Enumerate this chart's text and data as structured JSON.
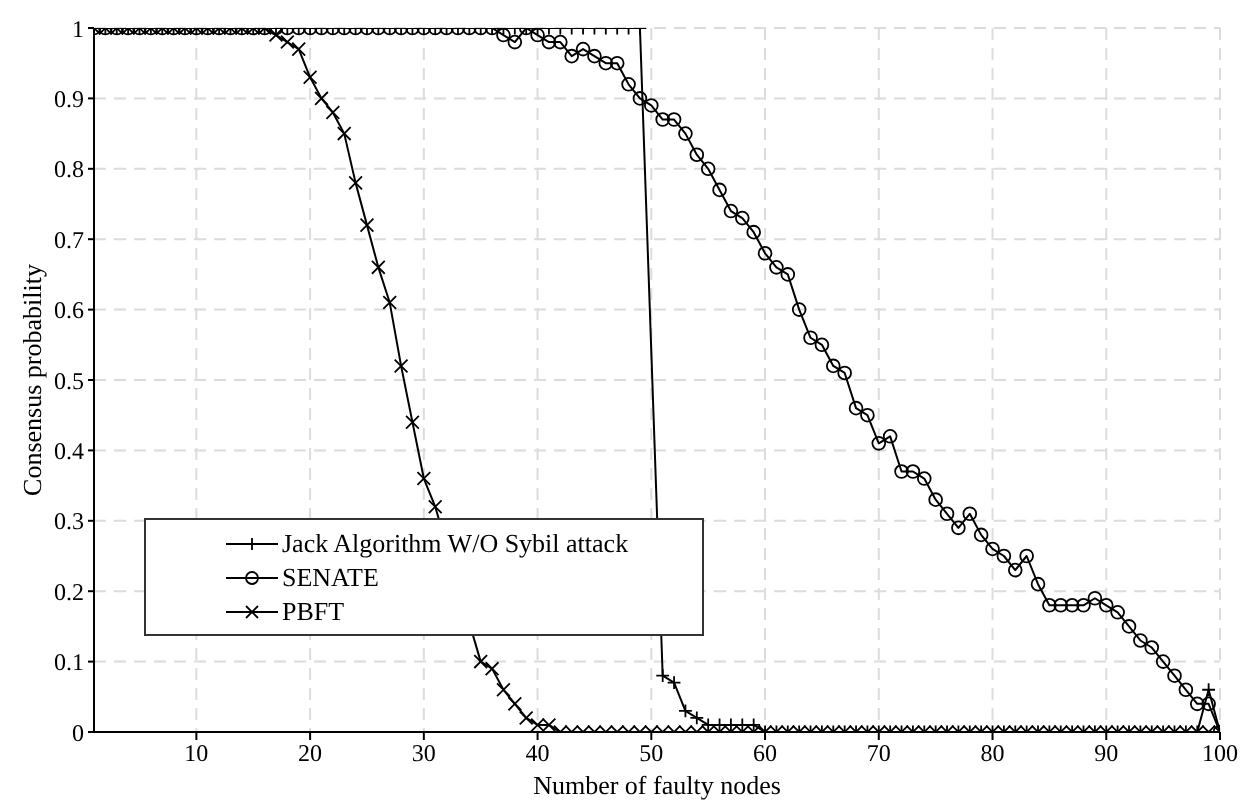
{
  "chart_data": {
    "type": "line",
    "xlabel": "Number of faulty nodes",
    "ylabel": "Consensus probability",
    "xlim": [
      1,
      100
    ],
    "xticks": [
      10,
      20,
      30,
      40,
      50,
      60,
      70,
      80,
      90,
      100
    ],
    "ylim": [
      0,
      1
    ],
    "yticks": [
      0,
      0.1,
      0.2,
      0.3,
      0.4,
      0.5,
      0.6,
      0.7,
      0.8,
      0.9,
      1
    ],
    "grid": true,
    "legend": "bottom left",
    "line_style": "solid",
    "x": [
      1,
      2,
      3,
      4,
      5,
      6,
      7,
      8,
      9,
      10,
      11,
      12,
      13,
      14,
      15,
      16,
      17,
      18,
      19,
      20,
      21,
      22,
      23,
      24,
      25,
      26,
      27,
      28,
      29,
      30,
      31,
      32,
      33,
      34,
      35,
      36,
      37,
      38,
      39,
      40,
      41,
      42,
      43,
      44,
      45,
      46,
      47,
      48,
      49,
      50,
      51,
      52,
      53,
      54,
      55,
      56,
      57,
      58,
      59,
      60,
      61,
      62,
      63,
      64,
      65,
      66,
      67,
      68,
      69,
      70,
      71,
      72,
      73,
      74,
      75,
      76,
      77,
      78,
      79,
      80,
      81,
      82,
      83,
      84,
      85,
      86,
      87,
      88,
      89,
      90,
      91,
      92,
      93,
      94,
      95,
      96,
      97,
      98,
      99,
      100
    ],
    "series": [
      {
        "name": "Jack Algorithm W/O Sybil attack",
        "color": "#000000",
        "marker": "plus",
        "values": [
          1,
          1,
          1,
          1,
          1,
          1,
          1,
          1,
          1,
          1,
          1,
          1,
          1,
          1,
          1,
          1,
          1,
          1,
          1,
          1,
          1,
          1,
          1,
          1,
          1,
          1,
          1,
          1,
          1,
          1,
          1,
          1,
          1,
          1,
          1,
          1,
          1,
          1,
          1,
          1,
          1,
          1,
          1,
          1,
          1,
          1,
          1,
          1,
          1,
          null,
          0.08,
          0.07,
          0.03,
          0.02,
          0.01,
          0.01,
          0.01,
          0.01,
          0.01,
          0,
          0,
          0,
          0,
          0,
          0,
          0,
          0,
          0,
          0,
          0,
          0,
          0,
          0,
          0,
          0,
          0,
          0,
          0,
          0,
          0,
          0,
          0,
          0,
          0,
          0,
          0,
          0,
          0,
          0,
          0,
          0,
          0,
          0,
          0,
          0,
          0,
          0,
          0,
          0.06,
          0
        ]
      },
      {
        "name": "SENATE",
        "color": "#000000",
        "marker": "circle",
        "values": [
          1,
          1,
          1,
          1,
          1,
          1,
          1,
          1,
          1,
          1,
          1,
          1,
          1,
          1,
          1,
          1,
          1,
          1,
          1,
          1,
          1,
          1,
          1,
          1,
          1,
          1,
          1,
          1,
          1,
          1,
          1,
          1,
          1,
          1,
          1,
          1,
          0.99,
          0.98,
          1,
          0.99,
          0.98,
          0.98,
          0.96,
          0.97,
          0.96,
          0.95,
          0.95,
          0.92,
          0.9,
          0.89,
          0.87,
          0.87,
          0.85,
          0.82,
          0.8,
          0.77,
          0.74,
          0.73,
          0.71,
          0.68,
          0.66,
          0.65,
          0.6,
          0.56,
          0.55,
          0.52,
          0.51,
          0.46,
          0.45,
          0.41,
          0.42,
          0.37,
          0.37,
          0.36,
          0.33,
          0.31,
          0.29,
          0.31,
          0.28,
          0.26,
          0.25,
          0.23,
          0.25,
          0.21,
          0.18,
          0.18,
          0.18,
          0.18,
          0.19,
          0.18,
          0.17,
          0.15,
          0.13,
          0.12,
          0.1,
          0.08,
          0.06,
          0.04,
          0.04,
          0
        ]
      },
      {
        "name": "PBFT",
        "color": "#000000",
        "marker": "cross",
        "values": [
          1,
          1,
          1,
          1,
          1,
          1,
          1,
          1,
          1,
          1,
          1,
          1,
          1,
          1,
          1,
          1,
          0.99,
          0.98,
          0.97,
          0.93,
          0.9,
          0.88,
          0.85,
          0.78,
          0.72,
          0.66,
          0.61,
          0.52,
          0.44,
          0.36,
          0.32,
          null,
          null,
          null,
          0.1,
          0.09,
          0.06,
          0.04,
          0.02,
          0.01,
          0.01,
          0,
          0,
          0,
          0,
          0,
          0,
          0,
          0,
          0,
          0,
          0,
          0,
          0,
          0,
          0,
          0,
          0,
          0,
          0,
          0,
          0,
          0,
          0,
          0,
          0,
          0,
          0,
          0,
          0,
          0,
          0,
          0,
          0,
          0,
          0,
          0,
          0,
          0,
          0,
          0,
          0,
          0,
          0,
          0,
          0,
          0,
          0,
          0,
          0,
          0,
          0,
          0,
          0,
          0,
          0,
          0,
          0,
          0,
          0
        ]
      }
    ]
  }
}
